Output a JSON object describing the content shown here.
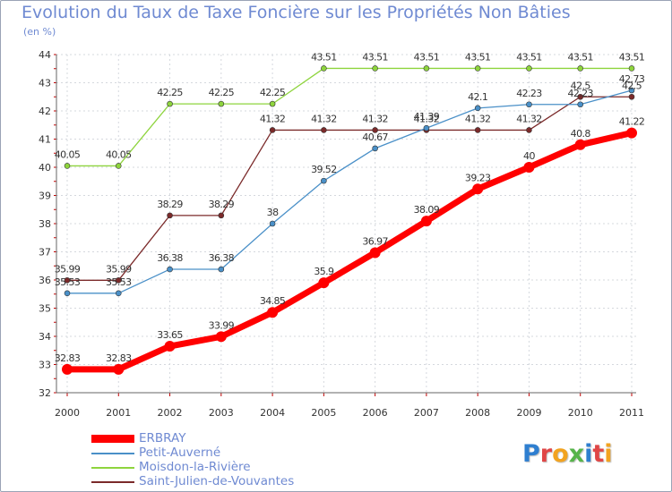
{
  "chart_data": {
    "type": "line",
    "title": "Evolution du Taux de Taxe Foncière sur les Propriétés Non Bâties",
    "unit": "(en %)",
    "categories": [
      "2000",
      "2001",
      "2002",
      "2003",
      "2004",
      "2005",
      "2006",
      "2007",
      "2008",
      "2009",
      "2010",
      "2011"
    ],
    "ylim": [
      32,
      44
    ],
    "yticks": [
      32,
      33,
      34,
      35,
      36,
      37,
      38,
      39,
      40,
      41,
      42,
      43,
      44
    ],
    "grid": true,
    "series": [
      {
        "name": "ERBRAY",
        "color": "#ff0000",
        "values": [
          32.83,
          32.83,
          33.65,
          33.99,
          34.85,
          35.9,
          36.97,
          38.09,
          39.23,
          40,
          40.8,
          41.22
        ],
        "labels": [
          "32.83",
          "32.83",
          "33.65",
          "33.99",
          "34.85",
          "35.9",
          "36.97",
          "38.09",
          "39.23",
          "40",
          "40.8",
          "41.22"
        ]
      },
      {
        "name": "Petit-Auverné",
        "color": "#4a90c8",
        "values": [
          35.53,
          35.53,
          36.38,
          36.38,
          38,
          39.52,
          40.67,
          41.39,
          42.1,
          42.23,
          42.23,
          42.73
        ],
        "labels": [
          "35.53",
          "35.53",
          "36.38",
          "36.38",
          "38",
          "39.52",
          "40.67",
          "41.39",
          "42.1",
          "42.23",
          "42.23",
          "42.73"
        ]
      },
      {
        "name": "Moisdon-la-Rivière",
        "color": "#8ed43d",
        "values": [
          40.05,
          40.05,
          42.25,
          42.25,
          42.25,
          43.51,
          43.51,
          43.51,
          43.51,
          43.51,
          43.51,
          43.51
        ],
        "labels": [
          "40.05",
          "40.05",
          "42.25",
          "42.25",
          "42.25",
          "43.51",
          "43.51",
          "43.51",
          "43.51",
          "43.51",
          "43.51",
          "43.51"
        ]
      },
      {
        "name": "Saint-Julien-de-Vouvantes",
        "color": "#7b2a2a",
        "values": [
          35.99,
          35.99,
          38.29,
          38.29,
          41.32,
          41.32,
          41.32,
          41.32,
          41.32,
          41.32,
          42.5,
          42.5
        ],
        "labels": [
          "35.99",
          "35.99",
          "38.29",
          "38.29",
          "41.32",
          "41.32",
          "41.32",
          "41.32",
          "41.32",
          "41.32",
          "42.5",
          "42.5"
        ]
      }
    ]
  },
  "logo": {
    "letters": [
      "P",
      "r",
      "o",
      "x",
      "i",
      "t",
      "i"
    ],
    "colors": [
      "#2f7fd0",
      "#e04646",
      "#f2a320",
      "#56b44a",
      "#2f7fd0",
      "#e04646",
      "#f2a320"
    ]
  }
}
